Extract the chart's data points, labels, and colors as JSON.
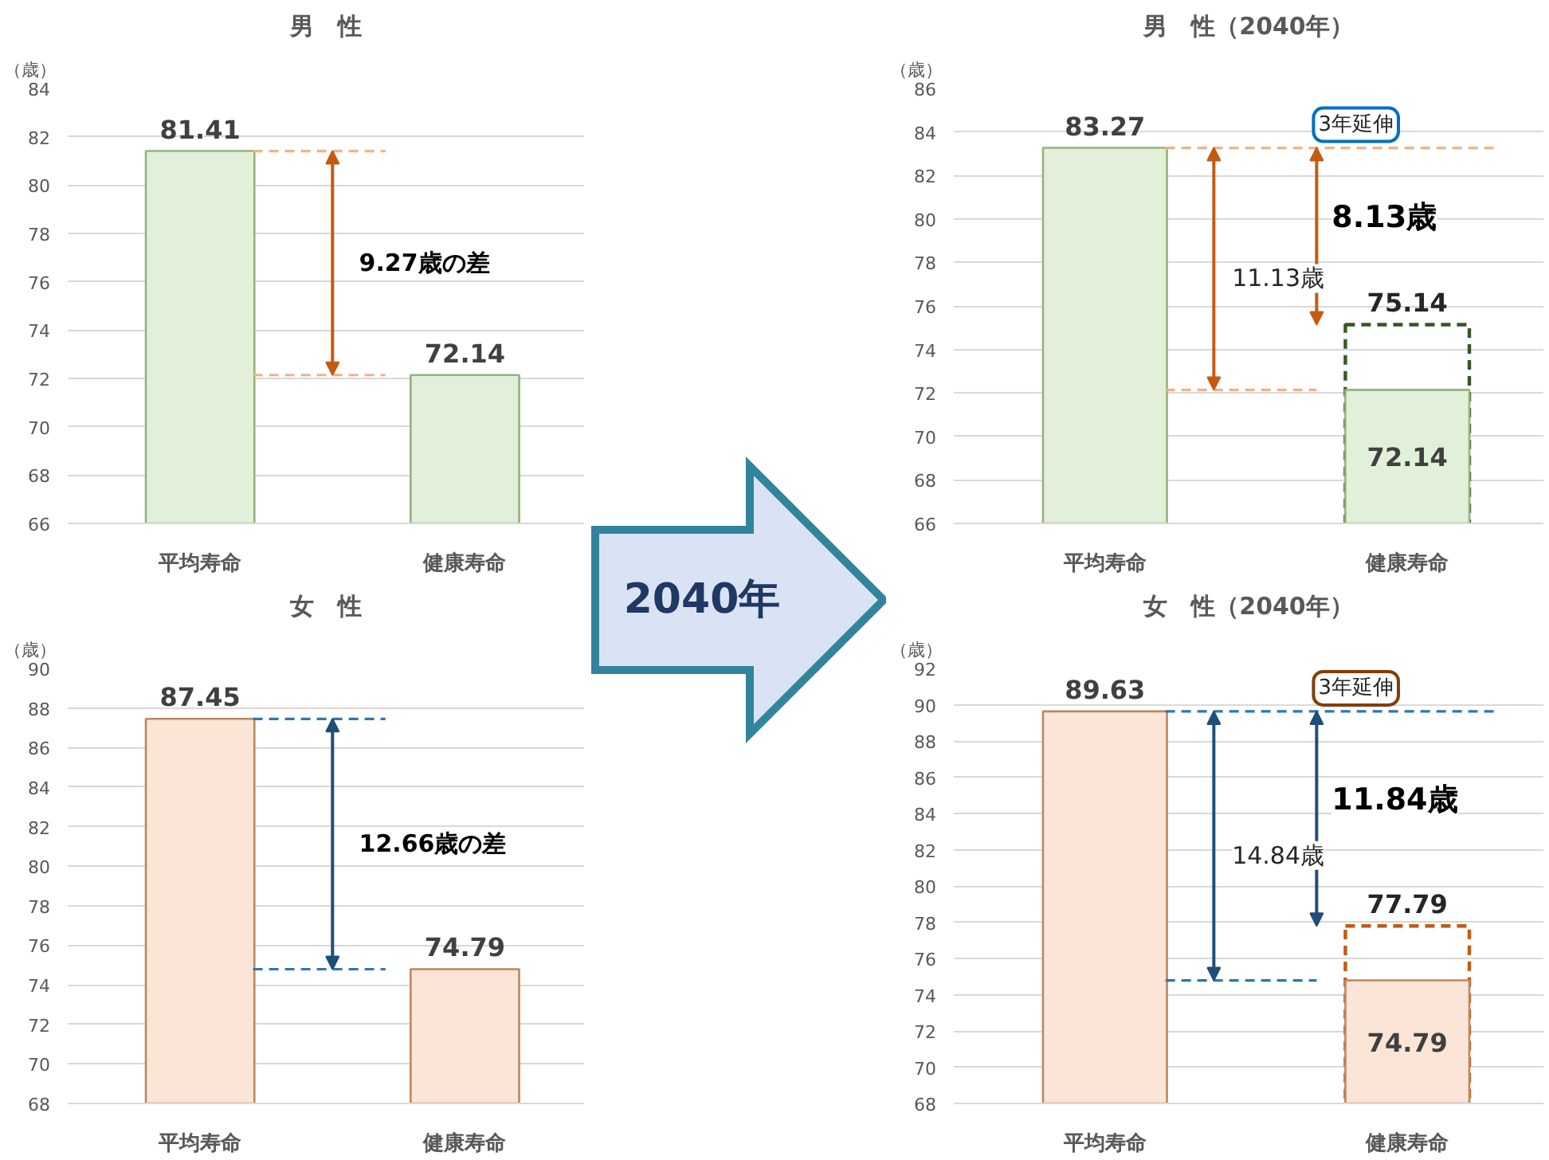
{
  "chart_data": [
    {
      "type": "bar",
      "title": "男　性",
      "ylabel": "（歳）",
      "categories": [
        "平均寿命",
        "健康寿命"
      ],
      "ylim": [
        66,
        84
      ],
      "yticks": [
        66,
        68,
        70,
        72,
        74,
        76,
        78,
        80,
        82,
        84
      ],
      "grid": "y",
      "series": [
        {
          "color": "#e2efd9",
          "values": [
            81.41,
            72.14
          ],
          "value_labels": [
            "81.41",
            "72.14"
          ]
        }
      ],
      "ref_lines": [
        {
          "axis": "y",
          "value": 81.41,
          "color": "#f4b183",
          "line_style": "dashed"
        },
        {
          "axis": "y",
          "value": 72.14,
          "color": "#f4b183",
          "line_style": "dashed"
        }
      ],
      "annotations": [
        "9.27歳の差"
      ]
    },
    {
      "type": "bar",
      "title": "男　性（2040年）",
      "ylabel": "（歳）",
      "categories": [
        "平均寿命",
        "健康寿命"
      ],
      "ylim": [
        66,
        86
      ],
      "yticks": [
        66,
        68,
        70,
        72,
        74,
        76,
        78,
        80,
        82,
        84,
        86
      ],
      "grid": "y",
      "series": [
        {
          "color": "#e2efd9",
          "values": [
            83.27,
            72.14
          ],
          "value_labels": [
            "83.27",
            "72.14"
          ]
        },
        {
          "color": "#375623",
          "line_style": "dashed",
          "values": [
            null,
            75.14
          ],
          "value_labels": [
            null,
            "75.14"
          ]
        }
      ],
      "ref_lines": [
        {
          "axis": "y",
          "value": 83.27,
          "color": "#f4b183",
          "line_style": "dashed"
        },
        {
          "axis": "y",
          "value": 72.14,
          "color": "#f4b183",
          "line_style": "dashed"
        }
      ],
      "annotations": [
        "3年延伸",
        "11.13歳",
        "8.13歳"
      ]
    },
    {
      "type": "other",
      "title": "2040年"
    },
    {
      "type": "bar",
      "title": "女　性",
      "ylabel": "（歳）",
      "categories": [
        "平均寿命",
        "健康寿命"
      ],
      "ylim": [
        68,
        90
      ],
      "yticks": [
        68,
        70,
        72,
        74,
        76,
        78,
        80,
        82,
        84,
        86,
        88,
        90
      ],
      "grid": "y",
      "series": [
        {
          "color": "#fbe5d6",
          "values": [
            87.45,
            74.79
          ],
          "value_labels": [
            "87.45",
            "74.79"
          ]
        }
      ],
      "ref_lines": [
        {
          "axis": "y",
          "value": 87.45,
          "color": "#2e75b6",
          "line_style": "dashed"
        },
        {
          "axis": "y",
          "value": 74.79,
          "color": "#2e75b6",
          "line_style": "dashed"
        }
      ],
      "annotations": [
        "12.66歳の差"
      ]
    },
    {
      "type": "bar",
      "title": "女　性（2040年）",
      "ylabel": "（歳）",
      "categories": [
        "平均寿命",
        "健康寿命"
      ],
      "ylim": [
        68,
        92
      ],
      "yticks": [
        68,
        70,
        72,
        74,
        76,
        78,
        80,
        82,
        84,
        86,
        88,
        90,
        92
      ],
      "grid": "y",
      "series": [
        {
          "color": "#fbe5d6",
          "values": [
            89.63,
            74.79
          ],
          "value_labels": [
            "89.63",
            "74.79"
          ]
        },
        {
          "color": "#c55a11",
          "line_style": "dashed",
          "values": [
            null,
            77.79
          ],
          "value_labels": [
            null,
            "77.79"
          ]
        }
      ],
      "ref_lines": [
        {
          "axis": "y",
          "value": 89.63,
          "color": "#2e75b6",
          "line_style": "dashed"
        },
        {
          "axis": "y",
          "value": 74.79,
          "color": "#2e75b6",
          "line_style": "dashed"
        }
      ],
      "annotations": [
        "3年延伸",
        "14.84歳",
        "11.84歳"
      ]
    }
  ]
}
